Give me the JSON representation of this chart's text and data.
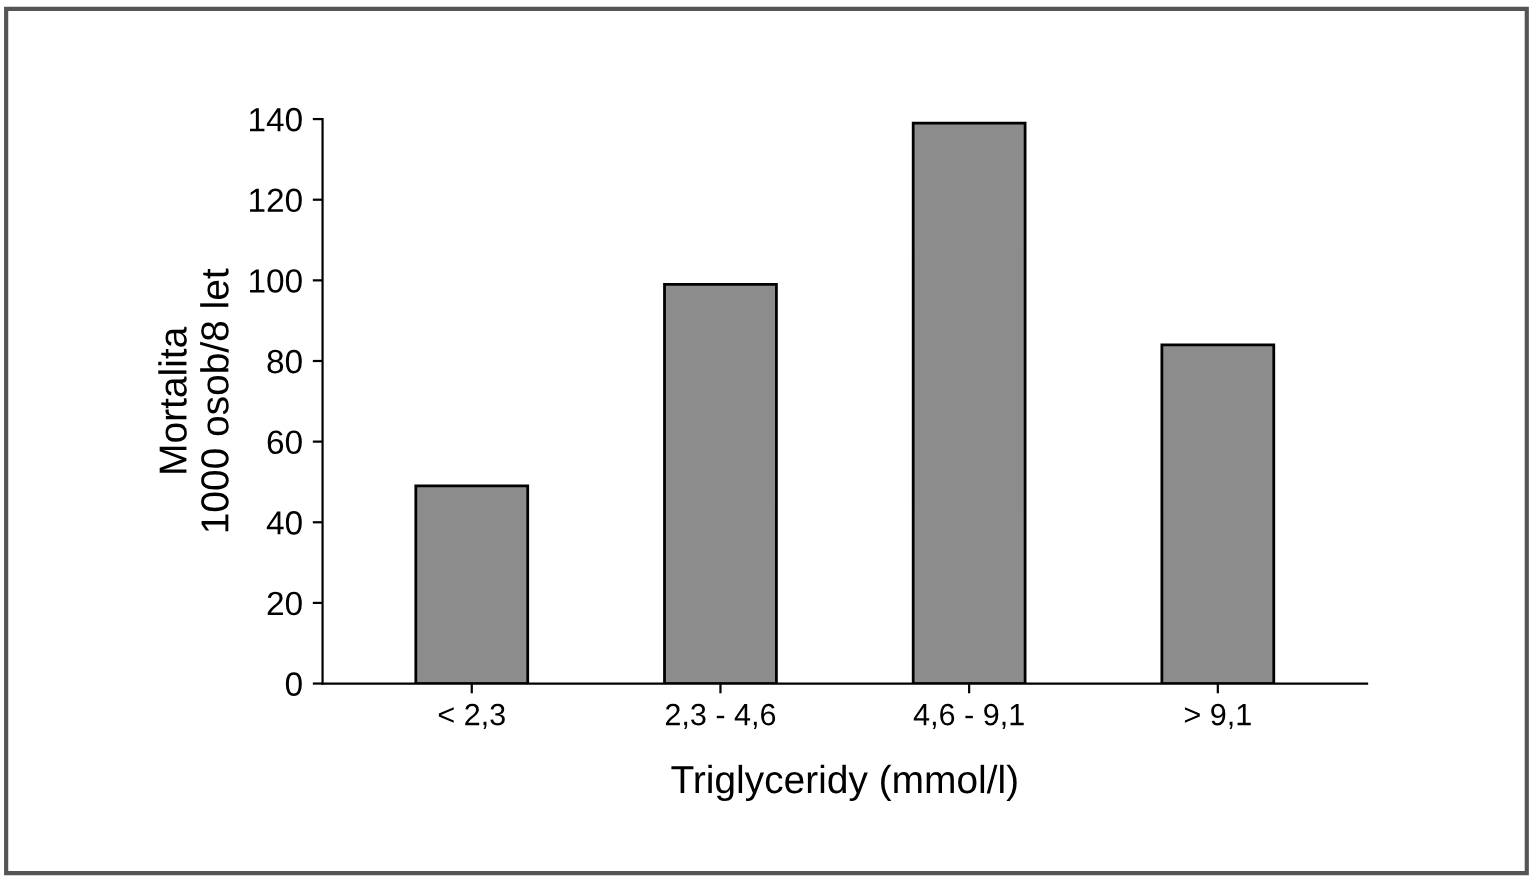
{
  "chart_data": {
    "type": "bar",
    "xlabel": "Triglyceridy (mmol/l)",
    "ylabel": "Mortalita\n1000 osob/8 let",
    "categories": [
      "< 2,3",
      "2,3 - 4,6",
      "4,6 - 9,1",
      "> 9,1"
    ],
    "values": [
      49,
      99,
      139,
      84
    ],
    "color": "#8c8c8c",
    "ylim": [
      0,
      140
    ],
    "yticks": [
      0,
      20,
      40,
      60,
      80,
      100,
      120,
      140
    ],
    "grid": false
  }
}
